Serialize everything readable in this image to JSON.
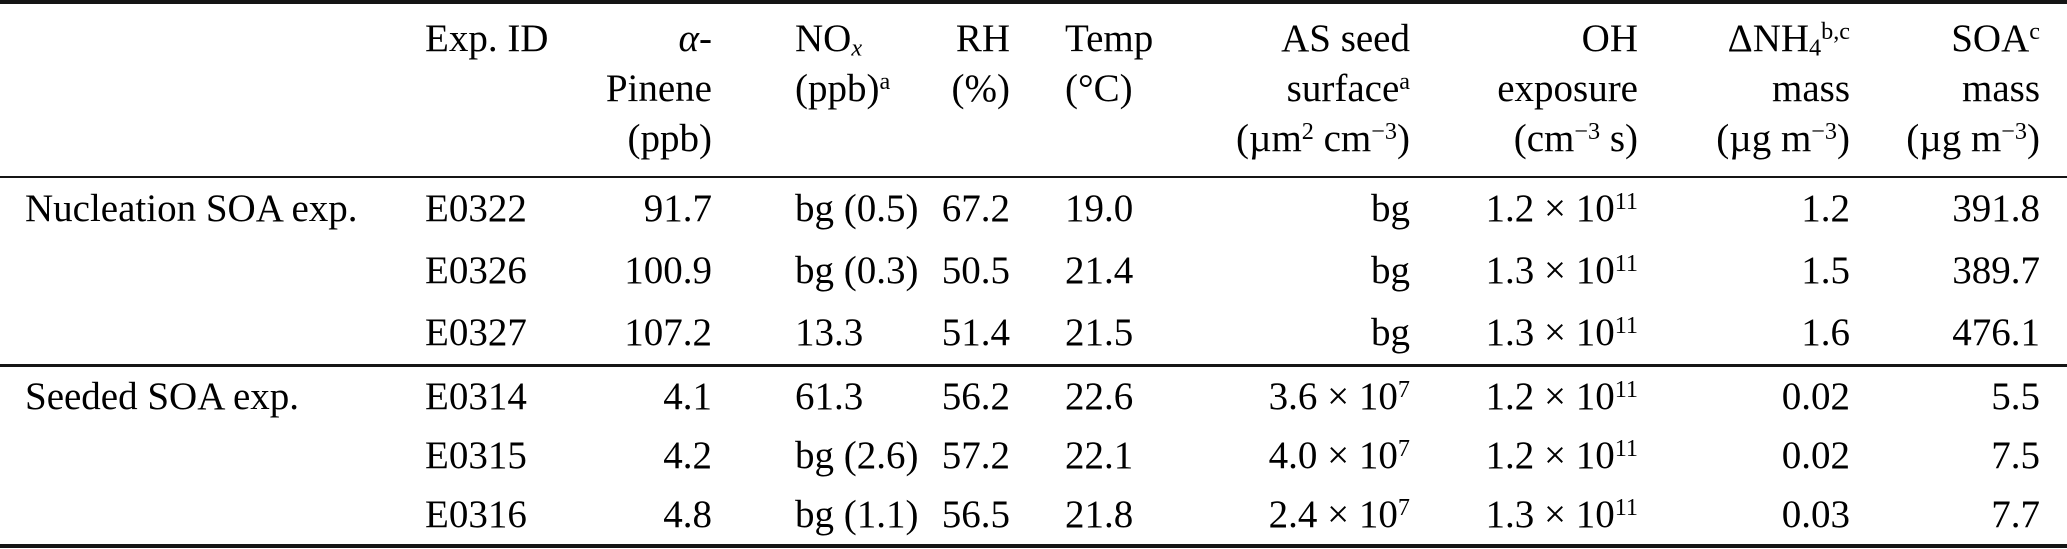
{
  "colors": {
    "background": "#ffffff",
    "text": "#000000",
    "rule": "#151515"
  },
  "table": {
    "columns": [
      {
        "key": "label",
        "header": ""
      },
      {
        "key": "exp_id",
        "header": "Exp. ID"
      },
      {
        "key": "pinene",
        "header": "*α*-\nPinene\n(ppb)"
      },
      {
        "key": "nox",
        "header": "NO_{*x*}\n(ppb)^{a}"
      },
      {
        "key": "rh",
        "header": "RH\n(%)"
      },
      {
        "key": "temp",
        "header": "Temp\n(°C)"
      },
      {
        "key": "seed",
        "header": "AS seed\nsurface^{a}\n(µm^{2} cm^{−3})"
      },
      {
        "key": "oh",
        "header": "OH\nexposure\n(cm^{−3} s)"
      },
      {
        "key": "nh4",
        "header": "ΔNH_{4}^{b,c}\nmass\n(µg m^{−3})"
      },
      {
        "key": "soa",
        "header": "SOA^{c}\nmass\n(µg m^{−3})"
      }
    ],
    "sections": [
      {
        "label": "Nucleation SOA exp.",
        "rows": [
          {
            "exp_id": "E0322",
            "pinene": "91.7",
            "nox": "bg (0.5)",
            "rh": "67.2",
            "temp": "19.0",
            "seed": "bg",
            "oh": "1.2 × 10^{11}",
            "nh4": "1.2",
            "soa": "391.8"
          },
          {
            "exp_id": "E0326",
            "pinene": "100.9",
            "nox": "bg (0.3)",
            "rh": "50.5",
            "temp": "21.4",
            "seed": "bg",
            "oh": "1.3 × 10^{11}",
            "nh4": "1.5",
            "soa": "389.7"
          },
          {
            "exp_id": "E0327",
            "pinene": "107.2",
            "nox": "13.3",
            "rh": "51.4",
            "temp": "21.5",
            "seed": "bg",
            "oh": "1.3 × 10^{11}",
            "nh4": "1.6",
            "soa": "476.1"
          }
        ]
      },
      {
        "label": "Seeded SOA exp.",
        "rows": [
          {
            "exp_id": "E0314",
            "pinene": "4.1",
            "nox": "61.3",
            "rh": "56.2",
            "temp": "22.6",
            "seed": "3.6 × 10^{7}",
            "oh": "1.2 × 10^{11}",
            "nh4": "0.02",
            "soa": "5.5"
          },
          {
            "exp_id": "E0315",
            "pinene": "4.2",
            "nox": "bg (2.6)",
            "rh": "57.2",
            "temp": "22.1",
            "seed": "4.0 × 10^{7}",
            "oh": "1.2 × 10^{11}",
            "nh4": "0.02",
            "soa": "7.5"
          },
          {
            "exp_id": "E0316",
            "pinene": "4.8",
            "nox": "bg (1.1)",
            "rh": "56.5",
            "temp": "21.8",
            "seed": "2.4 × 10^{7}",
            "oh": "1.3 × 10^{11}",
            "nh4": "0.03",
            "soa": "7.7"
          }
        ]
      }
    ]
  }
}
